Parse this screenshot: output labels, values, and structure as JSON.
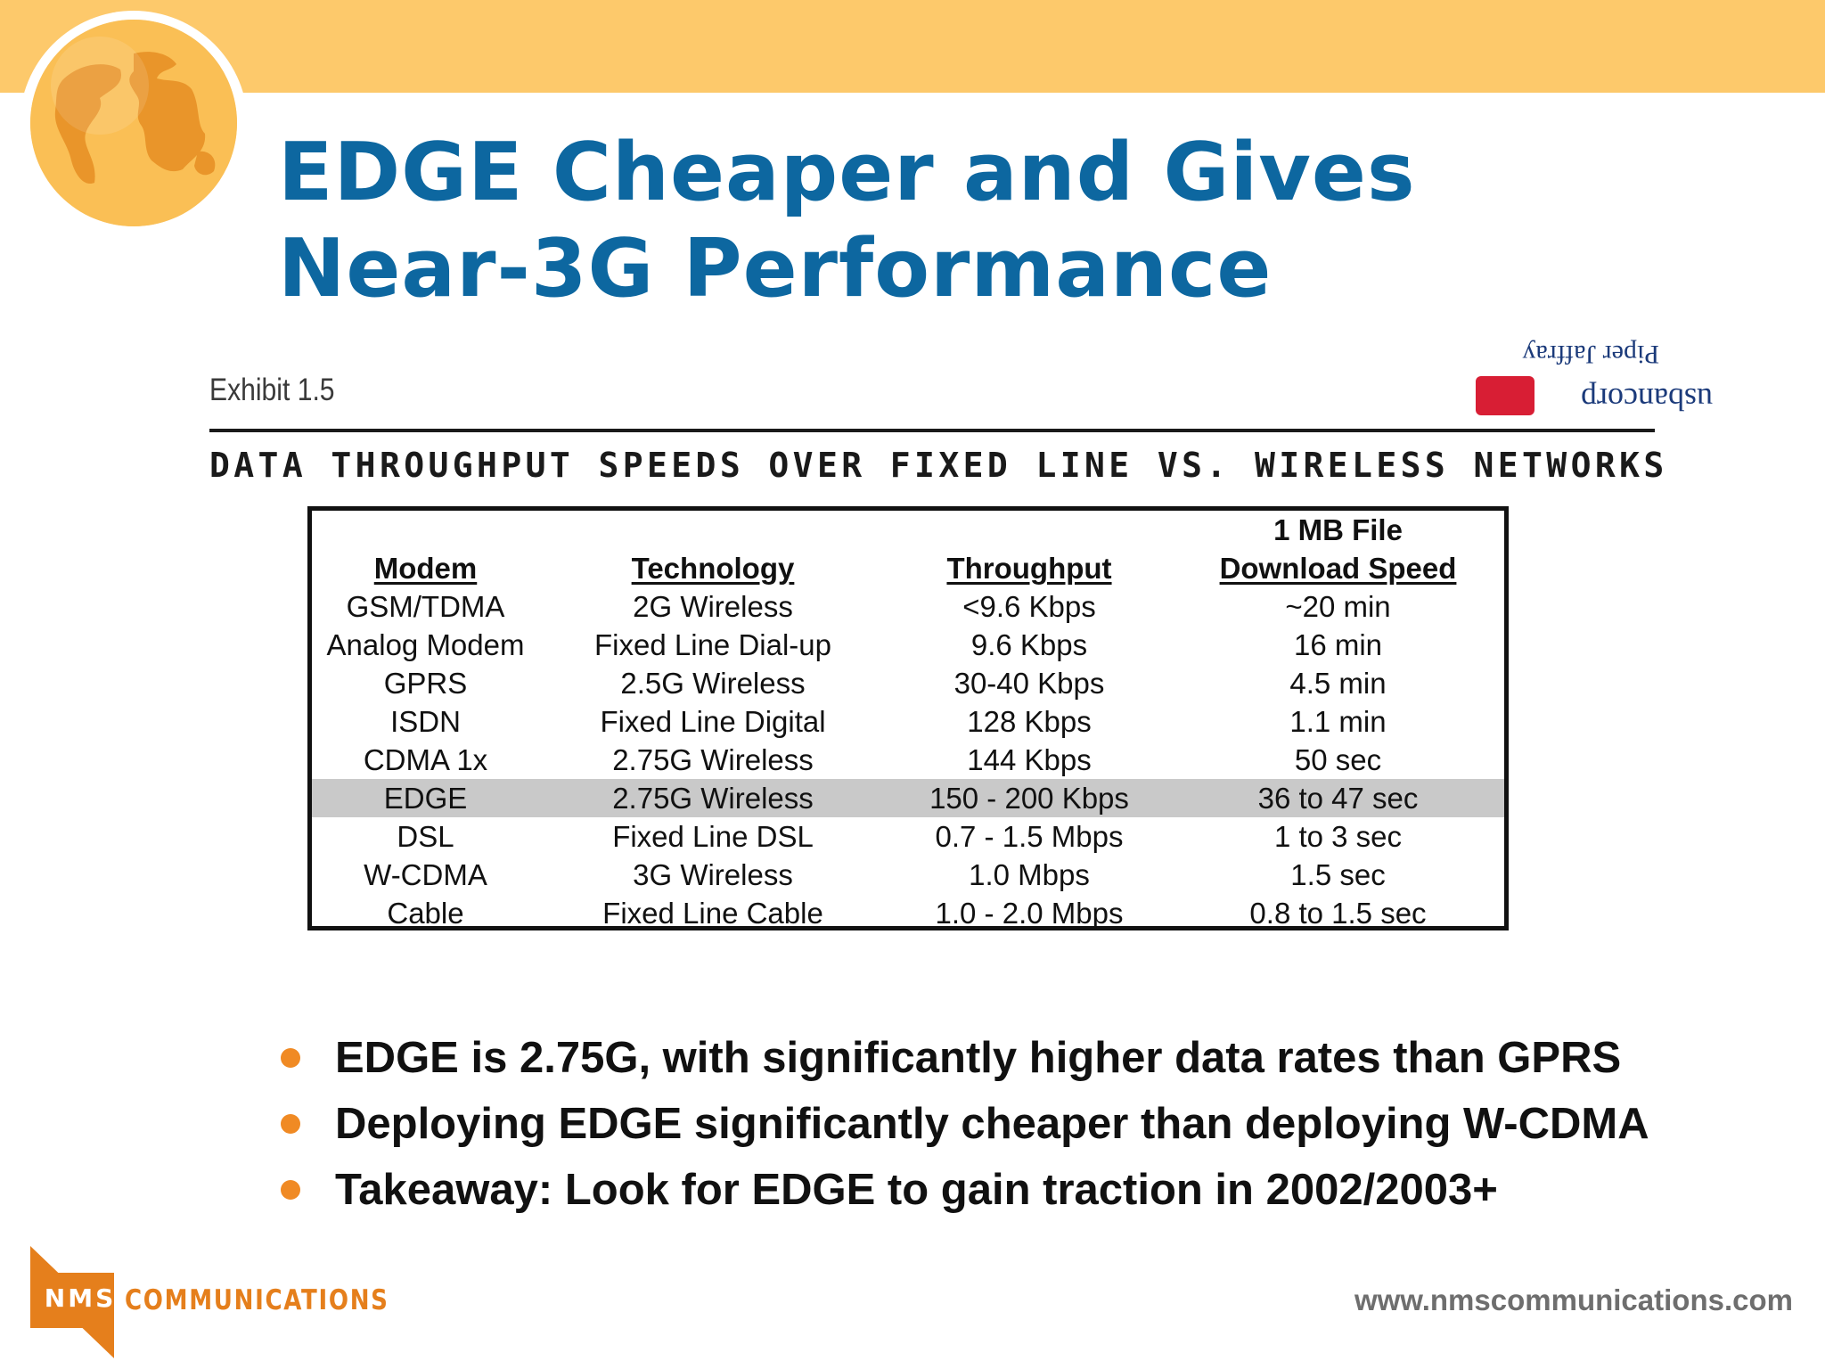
{
  "slide": {
    "title_line1": "EDGE Cheaper and Gives",
    "title_line2": "Near-3G Performance"
  },
  "exhibit": {
    "label": "Exhibit 1.5",
    "subtitle": "DATA THROUGHPUT SPEEDS OVER FIXED LINE VS. WIRELESS NETWORKS",
    "source_logo_text": "Piper Jaffray usbancorp"
  },
  "table": {
    "headers": {
      "modem": "Modem",
      "technology": "Technology",
      "throughput": "Throughput",
      "download_line1": "1 MB File",
      "download_line2": "Download Speed"
    },
    "rows": [
      {
        "modem": "GSM/TDMA",
        "technology": "2G Wireless",
        "throughput": "<9.6 Kbps",
        "download": "~20 min"
      },
      {
        "modem": "Analog Modem",
        "technology": "Fixed Line Dial-up",
        "throughput": "9.6 Kbps",
        "download": "16 min"
      },
      {
        "modem": "GPRS",
        "technology": "2.5G Wireless",
        "throughput": "30-40 Kbps",
        "download": "4.5 min"
      },
      {
        "modem": "ISDN",
        "technology": "Fixed Line Digital",
        "throughput": "128 Kbps",
        "download": "1.1 min"
      },
      {
        "modem": "CDMA 1x",
        "technology": "2.75G Wireless",
        "throughput": "144 Kbps",
        "download": "50 sec"
      },
      {
        "modem": "EDGE",
        "technology": "2.75G Wireless",
        "throughput": "150 - 200 Kbps",
        "download": "36 to 47 sec"
      },
      {
        "modem": "DSL",
        "technology": "Fixed Line DSL",
        "throughput": "0.7 - 1.5 Mbps",
        "download": "1 to 3 sec"
      },
      {
        "modem": "W-CDMA",
        "technology": "3G Wireless",
        "throughput": "1.0 Mbps",
        "download": "1.5 sec"
      },
      {
        "modem": "Cable",
        "technology": "Fixed Line Cable",
        "throughput": "1.0 - 2.0 Mbps",
        "download": "0.8 to 1.5 sec"
      }
    ],
    "highlight_color": "#c9c9c9"
  },
  "bullets": [
    "EDGE is 2.75G, with significantly higher data rates than GPRS",
    "Deploying EDGE significantly cheaper than deploying W-CDMA",
    "Takeaway: Look for EDGE to gain traction in 2002/2003+"
  ],
  "footer": {
    "logo_nms": "NMS",
    "logo_communications": "COMMUNICATIONS",
    "url": "www.nmscommunications.com"
  },
  "colors": {
    "title": "#0d67a0",
    "banner": "#fdc96b",
    "bullet": "#f08a24",
    "logo_orange": "#e57f1c"
  },
  "icons": {
    "globe": "globe-icon",
    "bullet": "bullet-dot-icon"
  }
}
